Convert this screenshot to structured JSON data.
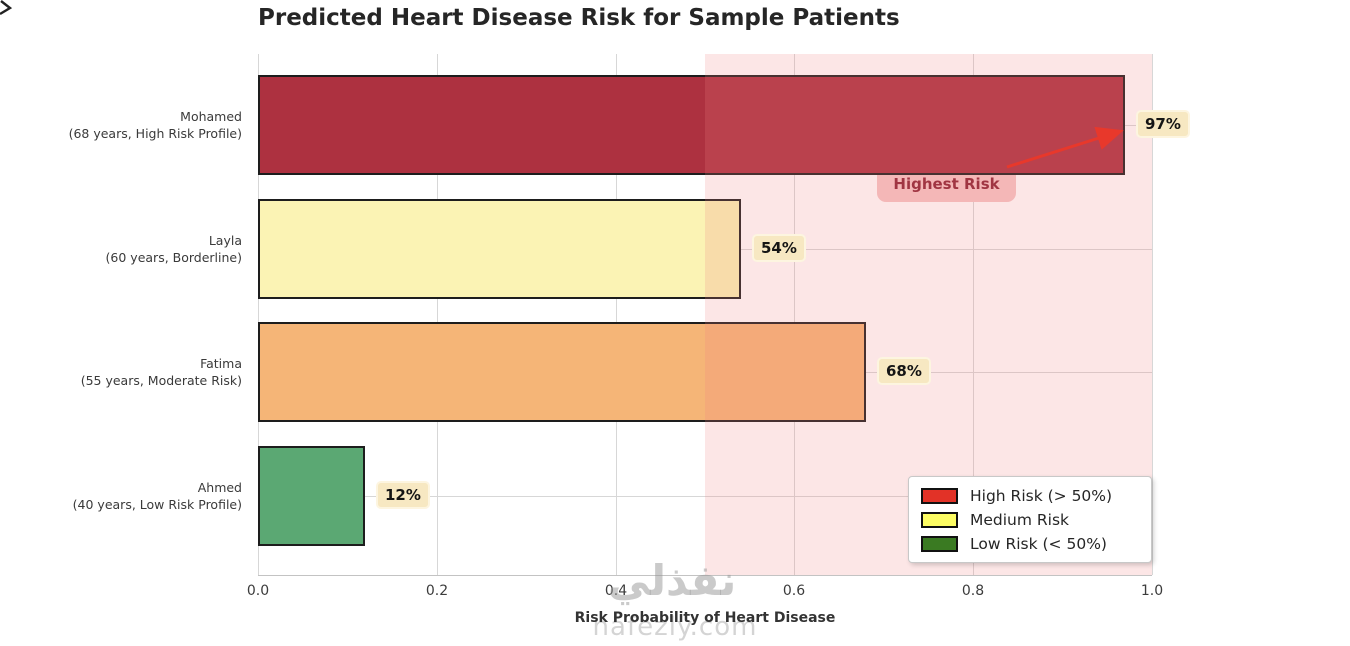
{
  "title": "Predicted Heart Disease Risk for Sample Patients",
  "watermark": {
    "arabic": "نفذلي",
    "latin": "nafezly.com"
  },
  "chart_data": {
    "type": "bar",
    "orientation": "horizontal",
    "title": "Predicted Heart Disease Risk for Sample Patients",
    "xlabel": "Risk Probability of Heart Disease",
    "ylabel": "",
    "xlim": [
      0.0,
      1.0
    ],
    "xticks": [
      "0.0",
      "0.2",
      "0.4",
      "0.6",
      "0.8",
      "1.0"
    ],
    "xtick_values": [
      0.0,
      0.2,
      0.4,
      0.6,
      0.8,
      1.0
    ],
    "grid": true,
    "categories": [
      "Mohamed (68 years, High Risk Profile)",
      "Layla (60 years, Borderline)",
      "Fatima (55 years, Moderate Risk)",
      "Ahmed (40 years, Low Risk Profile)"
    ],
    "rows": [
      {
        "name": "Mohamed",
        "detail": "(68 years, High Risk Profile)",
        "value": 0.97,
        "value_label": "97%",
        "color": "#ad3140"
      },
      {
        "name": "Layla",
        "detail": "(60 years, Borderline)",
        "value": 0.54,
        "value_label": "54%",
        "color": "#fbf3b4"
      },
      {
        "name": "Fatima",
        "detail": "(55 years, Moderate Risk)",
        "value": 0.68,
        "value_label": "68%",
        "color": "#f5b577"
      },
      {
        "name": "Ahmed",
        "detail": "(40 years, Low Risk Profile)",
        "value": 0.12,
        "value_label": "12%",
        "color": "#5ba873"
      }
    ],
    "bar_edge_color": "#1d1d1d",
    "threshold_region": {
      "from": 0.5,
      "to": 1.0,
      "color": "#F08080",
      "alpha": 0.2
    },
    "annotation": {
      "label": "Highest Risk",
      "target_value": 0.97,
      "arrow_color": "#e8382b",
      "box_color": "#f5c5c5",
      "text_color": "#8d2232"
    },
    "legend": {
      "position": "lower right",
      "items": [
        {
          "label": "High Risk (> 50%)",
          "color": "#e23227"
        },
        {
          "label": "Medium Risk",
          "color": "#fcfc63"
        },
        {
          "label": "Low Risk (< 50%)",
          "color": "#3a7a22"
        }
      ]
    }
  }
}
